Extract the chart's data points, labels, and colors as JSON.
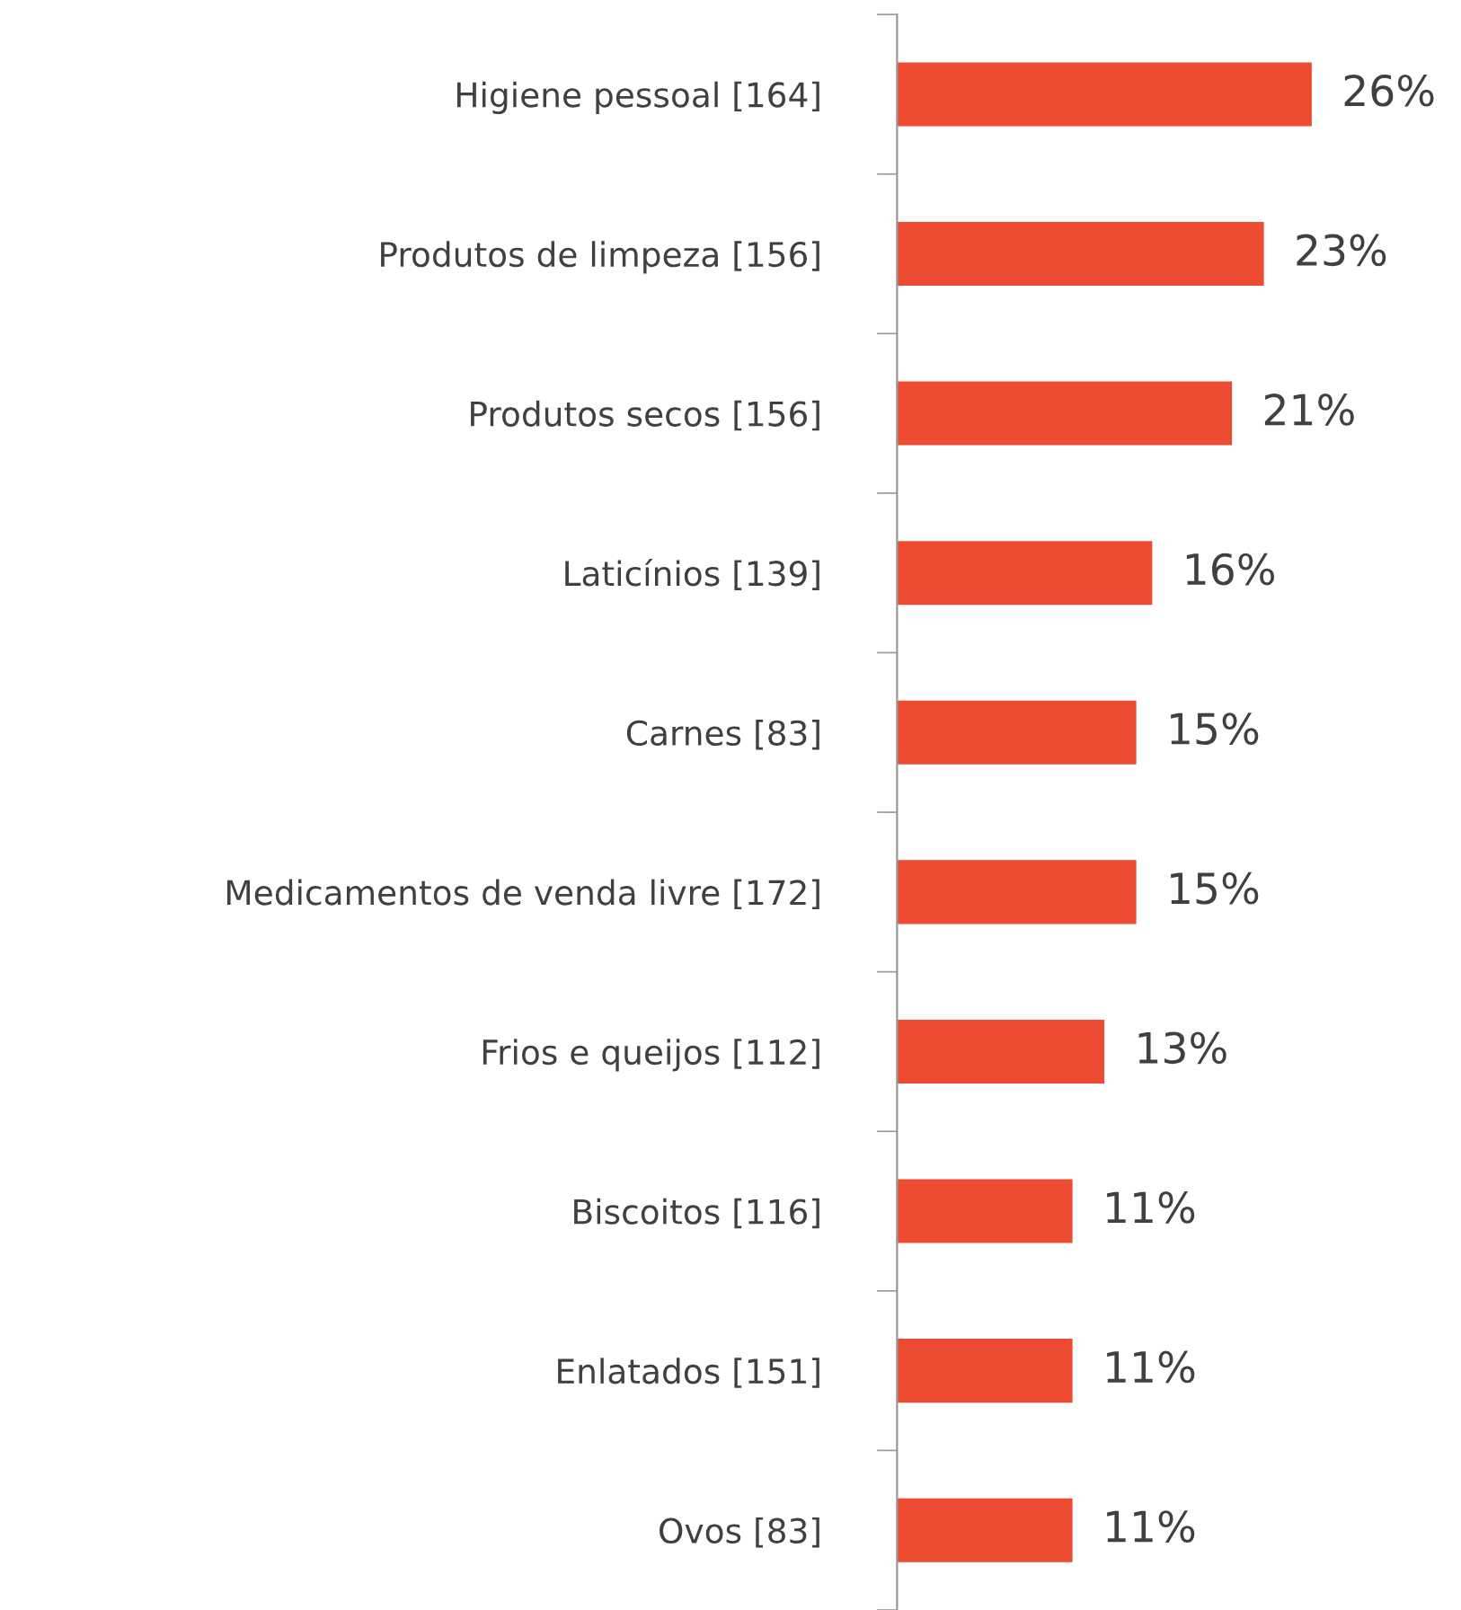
{
  "chart_data": {
    "type": "bar",
    "orientation": "horizontal",
    "categories": [
      "Higiene pessoal [164]",
      "Produtos de limpeza [156]",
      "Produtos secos [156]",
      "Laticínios [139]",
      "Carnes [83]",
      "Medicamentos de venda livre [172]",
      "Frios e queijos [112]",
      "Biscoitos [116]",
      "Enlatados [151]",
      "Ovos [83]"
    ],
    "values": [
      26,
      23,
      21,
      16,
      15,
      15,
      13,
      11,
      11,
      11
    ],
    "value_labels": [
      "26%",
      "23%",
      "21%",
      "16%",
      "15%",
      "15%",
      "13%",
      "11%",
      "11%",
      "11%"
    ],
    "color": "#ee4b33",
    "grid": false,
    "legend": false
  }
}
